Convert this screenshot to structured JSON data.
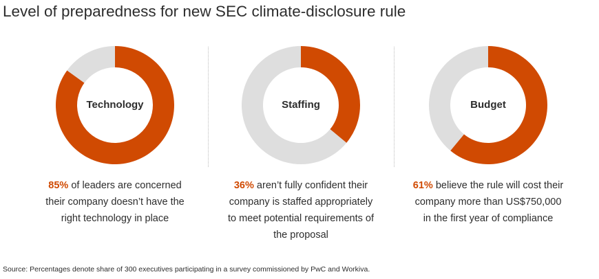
{
  "title": "Level of preparedness for new SEC climate-disclosure rule",
  "source": "Source: Percentages denote share of 300 executives participating in a survey commissioned by PwC and Workiva.",
  "chart_data": [
    {
      "type": "donut",
      "title": "Technology",
      "values": [
        85,
        15
      ],
      "value_labels": [
        "85%",
        null
      ],
      "colors": [
        "#d04a02",
        "#dedede"
      ],
      "caption": "of leaders are concerned their company doesn’t have the right technology in place"
    },
    {
      "type": "donut",
      "title": "Staffing",
      "values": [
        36,
        64
      ],
      "value_labels": [
        "36%",
        null
      ],
      "colors": [
        "#d04a02",
        "#dedede"
      ],
      "caption": "aren’t fully confident their company is staffed appropriately to meet potential requirements of the proposal"
    },
    {
      "type": "donut",
      "title": "Budget",
      "values": [
        61,
        39
      ],
      "value_labels": [
        "61%",
        null
      ],
      "colors": [
        "#d04a02",
        "#dedede"
      ],
      "caption": "believe the rule will cost their company more than US$750,000 in the first year of compliance"
    }
  ]
}
